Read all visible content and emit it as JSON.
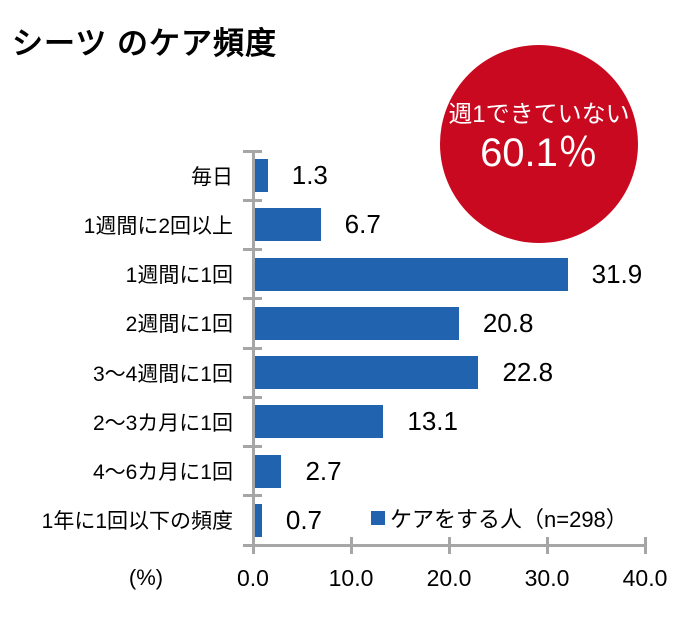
{
  "badge": {
    "line1": "週1できていない",
    "value": "60.1％",
    "color": "#C9091F",
    "text_color": "#FFFFFF"
  },
  "chart_data": {
    "type": "bar",
    "orientation": "horizontal",
    "title": "シーツ のケア頻度",
    "categories": [
      "毎日",
      "1週間に2回以上",
      "1週間に1回",
      "2週間に1回",
      "3〜4週間に1回",
      "2〜3カ月に1回",
      "4〜6カ月に1回",
      "1年に1回以下の頻度"
    ],
    "values": [
      1.3,
      6.7,
      31.9,
      20.8,
      22.8,
      13.1,
      2.7,
      0.7
    ],
    "xlabel": "(%)",
    "xlim": [
      0,
      40
    ],
    "xtick_labels": [
      "0.0",
      "10.0",
      "20.0",
      "30.0",
      "40.0"
    ],
    "xtick_values": [
      0,
      10,
      20,
      30,
      40
    ],
    "grid": false,
    "bar_color": "#2163AE",
    "axis_color": "#A6A6A6",
    "legend": {
      "label": "ケアをする人（n=298）",
      "position": "inside-bottom-right"
    }
  }
}
